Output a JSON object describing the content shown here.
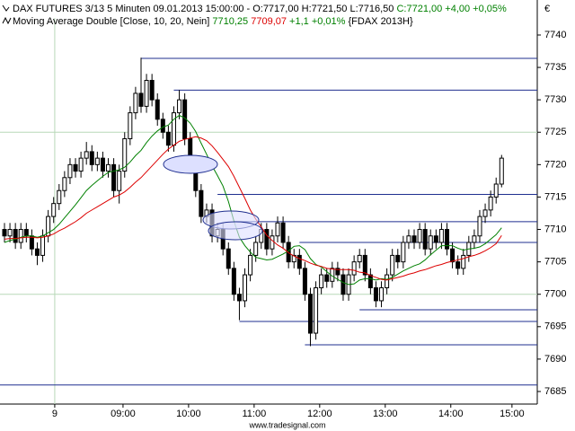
{
  "chart_data": {
    "type": "candlestick",
    "title": "DAX FUTURES 3/13 5 Minuten  09.01.2013 15:00:00 - O:7717,00 H:7721,50 L:7716,50",
    "title_change": "C:7721,00 +4,00 +0,05%",
    "indicator": "Moving Average Double [Close, 10, 20, Nein]",
    "indicator_values": [
      "7710,25",
      "7709,07"
    ],
    "indicator_change": "+1,1 +0,01%",
    "symbol": "{FDAX 2013H}",
    "currency": "€",
    "footer": "www.tradesignal.com",
    "ylim": [
      7683.06,
      7742.63
    ],
    "yticks": [
      7685,
      7690,
      7695,
      7700,
      7705,
      7710,
      7715,
      7720,
      7725,
      7730,
      7735,
      7740
    ],
    "hgrid": [
      7725,
      7700
    ],
    "xlim": [
      -0.82,
      97.53
    ],
    "xticks": [
      {
        "value": 9.2,
        "label": "9"
      },
      {
        "value": 21.7,
        "label": "09:00"
      },
      {
        "value": 33.7,
        "label": "10:00"
      },
      {
        "value": 45.7,
        "label": "11:00"
      },
      {
        "value": 57.7,
        "label": "12:00"
      },
      {
        "value": 69.7,
        "label": "13:00"
      },
      {
        "value": 81.7,
        "label": "14:00"
      },
      {
        "value": 92.9,
        "label": "15:00"
      }
    ],
    "color": "#000000",
    "open": [
      7710,
      7709,
      7710,
      7708,
      7710,
      7709,
      7707,
      7706,
      7709,
      7712,
      7714,
      7716,
      7718,
      7720,
      7719,
      7721,
      7722,
      7720,
      7721,
      7719,
      7720,
      7716,
      7719,
      7724,
      7728,
      7731,
      7729,
      7733,
      7730,
      7727,
      7725,
      7723,
      7728,
      7730,
      7724,
      7720,
      7716,
      7712,
      7713,
      7709,
      7710,
      7707,
      7704,
      7700,
      7699,
      7703,
      7706,
      7708,
      7710,
      7707,
      7709,
      7711,
      7708,
      7705,
      7706,
      7704,
      7700,
      7694,
      7701,
      7703,
      7702,
      7704,
      7703,
      7700,
      7703,
      7705,
      7706,
      7703,
      7701,
      7699,
      7701,
      7703,
      7706,
      7705,
      7708,
      7709,
      7708,
      7710,
      7707,
      7709,
      7708,
      7710,
      7707,
      7705,
      7704,
      7706,
      7708,
      7709,
      7712,
      7713,
      7715,
      7717
    ],
    "high": [
      7711,
      7711,
      7711,
      7711,
      7711,
      7710,
      7708,
      7710,
      7713,
      7715,
      7717,
      7719,
      7721,
      7721,
      7722,
      7723.5,
      7723,
      7722,
      7722,
      7721,
      7721,
      7720,
      7725,
      7729,
      7732,
      7736.5,
      7734,
      7734,
      7731,
      7728,
      7726,
      7729,
      7731.5,
      7731,
      7725,
      7721,
      7717,
      7714,
      7714,
      7711,
      7711,
      7708,
      7705,
      7701,
      7704,
      7707,
      7709,
      7711,
      7711,
      7710,
      7712,
      7712,
      7709,
      7707,
      7707,
      7705,
      7701,
      7702,
      7704,
      7704,
      7705,
      7705,
      7704,
      7704,
      7706,
      7707,
      7707,
      7704,
      7702,
      7702,
      7704,
      7707,
      7707,
      7709,
      7710,
      7710,
      7711,
      7711,
      7710,
      7710,
      7711,
      7711,
      7708,
      7706,
      7707,
      7709,
      7710,
      7713,
      7714,
      7716,
      7718,
      7721.5
    ],
    "low": [
      7708,
      7708,
      7707,
      7707,
      7708,
      7706,
      7704.5,
      7705,
      7708,
      7711,
      7713,
      7715,
      7717,
      7718,
      7718,
      7720,
      7719,
      7719,
      7718,
      7718,
      7715,
      7714,
      7718,
      7723,
      7727,
      7728,
      7728,
      7729,
      7726,
      7724,
      7722,
      7722,
      7727,
      7723,
      7719,
      7715,
      7711,
      7711,
      7708,
      7708,
      7706,
      7703,
      7699,
      7696,
      7698,
      7702,
      7705,
      7707,
      7706,
      7706,
      7708,
      7707,
      7704,
      7704,
      7703,
      7699,
      7692,
      7693,
      7700,
      7701,
      7701,
      7702,
      7699,
      7699,
      7702,
      7704,
      7702,
      7700,
      7698,
      7698,
      7700,
      7702,
      7704,
      7704,
      7707,
      7707,
      7707,
      7706,
      7706,
      7707,
      7707,
      7706,
      7704,
      7703,
      7703,
      7705,
      7707,
      7708,
      7711,
      7712,
      7714,
      7716.5
    ],
    "close": [
      7709,
      7710,
      7708,
      7710,
      7709,
      7707,
      7706,
      7709,
      7712,
      7714,
      7716,
      7718,
      7720,
      7719,
      7721,
      7722,
      7720,
      7721,
      7719,
      7720,
      7716,
      7719,
      7724,
      7728,
      7731,
      7729,
      7733,
      7730,
      7727,
      7725,
      7723,
      7728,
      7730,
      7724,
      7720,
      7716,
      7712,
      7713,
      7709,
      7710,
      7707,
      7704,
      7700,
      7699,
      7703,
      7706,
      7708,
      7710,
      7707,
      7709,
      7711,
      7708,
      7705,
      7706,
      7704,
      7700,
      7694,
      7701,
      7703,
      7702,
      7704,
      7703,
      7700,
      7703,
      7705,
      7706,
      7703,
      7701,
      7699,
      7701,
      7703,
      7706,
      7705,
      7708,
      7709,
      7708,
      7710,
      7707,
      7709,
      7708,
      7710,
      7707,
      7705,
      7704,
      7706,
      7708,
      7709,
      7712,
      7713,
      7715,
      7717,
      7721
    ],
    "series": [
      {
        "color": "#008000",
        "values": [
          7708,
          7708.3,
          7708.5,
          7708.8,
          7709,
          7709,
          7708.8,
          7709,
          7709.5,
          7710,
          7710.8,
          7711.8,
          7712.8,
          7713.8,
          7714.9,
          7716,
          7716.8,
          7717.5,
          7718.2,
          7718.8,
          7719,
          7719.2,
          7719.6,
          7720.4,
          7721.4,
          7722.2,
          7723.4,
          7724.4,
          7725.2,
          7725.8,
          7726.1,
          7727,
          7727.6,
          7727.2,
          7726.4,
          7725.1,
          7723.3,
          7721.6,
          7719.8,
          7718.3,
          7716.7,
          7714.3,
          7711.3,
          7708.8,
          7707.5,
          7706.5,
          7705.7,
          7705.5,
          7705.3,
          7705.4,
          7705.8,
          7706.2,
          7706.7,
          7707.4,
          7707.5,
          7706.9,
          7705.5,
          7704.6,
          7704.2,
          7703.5,
          7702.8,
          7702.3,
          7701.8,
          7701.5,
          7701.6,
          7702.2,
          7702.4,
          7702.4,
          7702.2,
          7702.4,
          7702.3,
          7702.6,
          7703.1,
          7703.6,
          7704,
          7704.4,
          7704.7,
          7705.3,
          7706.1,
          7706.8,
          7707.5,
          7707.5,
          7707.5,
          7707.1,
          7706.8,
          7707,
          7707.1,
          7707.3,
          7707.8,
          7708.5,
          7709.2,
          7710.25
        ]
      },
      {
        "color": "#dd0000",
        "values": [
          7708.5,
          7708.6,
          7708.6,
          7708.7,
          7708.8,
          7708.8,
          7708.7,
          7708.8,
          7709,
          7709.3,
          7709.8,
          7710.2,
          7710.7,
          7711.2,
          7711.8,
          7712.5,
          7713,
          7713.5,
          7714,
          7714.5,
          7715,
          7715.3,
          7715.8,
          7716.5,
          7717.3,
          7718,
          7718.9,
          7719.8,
          7720.7,
          7721.6,
          7722.4,
          7723,
          7723.6,
          7723.9,
          7724.1,
          7724.3,
          7724.1,
          7723.7,
          7722.9,
          7721.9,
          7720.8,
          7719.7,
          7718.2,
          7716.5,
          7714.8,
          7713,
          7711.6,
          7710.4,
          7709.1,
          7708.3,
          7707.6,
          7707.1,
          7706.4,
          7705.9,
          7705.5,
          7705.2,
          7704.8,
          7704.5,
          7704.3,
          7704,
          7703.9,
          7703.8,
          7703.8,
          7703.8,
          7703.7,
          7703.4,
          7703.3,
          7702.9,
          7702.6,
          7702.3,
          7702.2,
          7702.4,
          7702.6,
          7702.8,
          7703.1,
          7703.3,
          7703.6,
          7703.8,
          7704.1,
          7704.4,
          7704.6,
          7704.9,
          7705.1,
          7705.3,
          7705.5,
          7705.8,
          7706,
          7706.3,
          7706.7,
          7707.2,
          7707.8,
          7709.07
        ]
      }
    ],
    "levels": [
      {
        "y": 7736.4,
        "x": 25
      },
      {
        "y": 7731.5,
        "x": 31
      },
      {
        "y": 7715.4,
        "x": 39
      },
      {
        "y": 7711.2,
        "x": 42
      },
      {
        "y": 7708,
        "x": 54
      },
      {
        "y": 7697.6,
        "x": 65
      },
      {
        "y": 7695.8,
        "x": 43
      },
      {
        "y": 7692.2,
        "x": 55
      },
      {
        "y": 7686,
        "x": -0.82
      }
    ],
    "level_color": "#1f2f8f"
  }
}
